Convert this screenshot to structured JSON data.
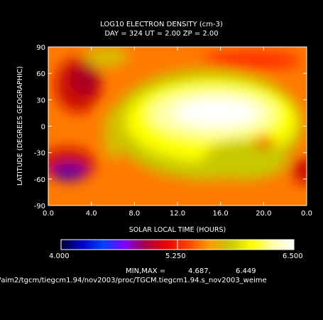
{
  "chart_data": {
    "type": "heatmap",
    "title": "LOG10 ELECTRON DENSITY (cm-3)",
    "subtitle": "DAY = 324   UT =   2.00   ZP =    2.00",
    "xlabel": "SOLAR LOCAL TIME (HOURS)",
    "ylabel": "LATITUDE (DEGREES GEOGRAPHIC)",
    "x_ticks": [
      "0.0",
      "4.0",
      "8.0",
      "12.0",
      "16.0",
      "20.0",
      "0.0"
    ],
    "y_ticks": [
      "90",
      "60",
      "30",
      "0",
      "-30",
      "-60",
      "-90"
    ],
    "xlim": [
      0,
      24
    ],
    "ylim": [
      -90,
      90
    ],
    "colorbar": {
      "min_label": "4.000",
      "mid_label": "5.250",
      "max_label": "6.500",
      "range": [
        4.0,
        6.5
      ],
      "colors": [
        "#000033",
        "#0000cc",
        "#0044ff",
        "#8000ff",
        "#aa0044",
        "#ee0000",
        "#ff4400",
        "#ff9a00",
        "#c8c800",
        "#ffff00",
        "#ffffaa",
        "#ffffff"
      ]
    },
    "minmax_label": "MIN,MAX =",
    "min_value": "4.687,",
    "max_value": "6.449",
    "grid": false
  },
  "footer_path": "/aim2/tgcm/tiegcm1.94/nov2003/proc/TGCM.tiegcm1.94.s_nov2003_weime"
}
